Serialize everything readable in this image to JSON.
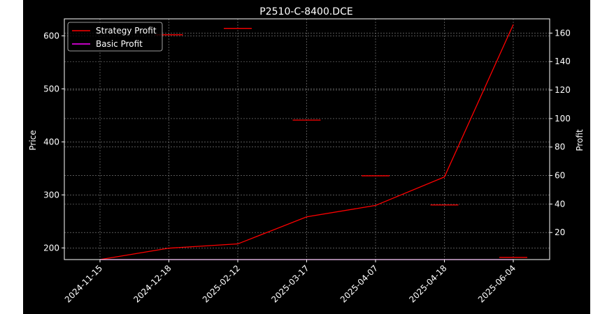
{
  "chart_data": {
    "type": "line",
    "title": "P2510-C-8400.DCE",
    "ylabel_left": "Price",
    "ylabel_right": "Profit",
    "x_categories": [
      "2024-11-15",
      "2024-12-18",
      "2025-02-12",
      "2025-03-17",
      "2025-04-07",
      "2025-04-18",
      "2025-06-04"
    ],
    "left_axis": {
      "ylim": [
        178,
        632
      ],
      "ticks": [
        200,
        300,
        400,
        500,
        600
      ]
    },
    "right_axis": {
      "ylim": [
        1,
        170
      ],
      "ticks": [
        20,
        40,
        60,
        80,
        100,
        120,
        140,
        160
      ]
    },
    "grid": true,
    "legend_position": "top-left",
    "series": [
      {
        "name": "Strategy Profit",
        "axis": "right",
        "color": "#ff0000",
        "values": [
          1,
          9,
          12,
          31,
          39,
          59,
          166
        ]
      },
      {
        "name": "Basic Profit",
        "axis": "right",
        "color": "#ff00ff",
        "values": [
          1,
          1,
          1,
          1,
          1,
          1,
          1
        ]
      }
    ],
    "price_marks": {
      "axis": "left",
      "color": "#ff0000",
      "values": [
        null,
        602,
        614,
        441,
        336,
        281,
        182
      ]
    }
  },
  "colors": {
    "background": "#000000",
    "page": "#ffffff",
    "axes": "#ffffff",
    "grid": "#8c8c8c"
  }
}
